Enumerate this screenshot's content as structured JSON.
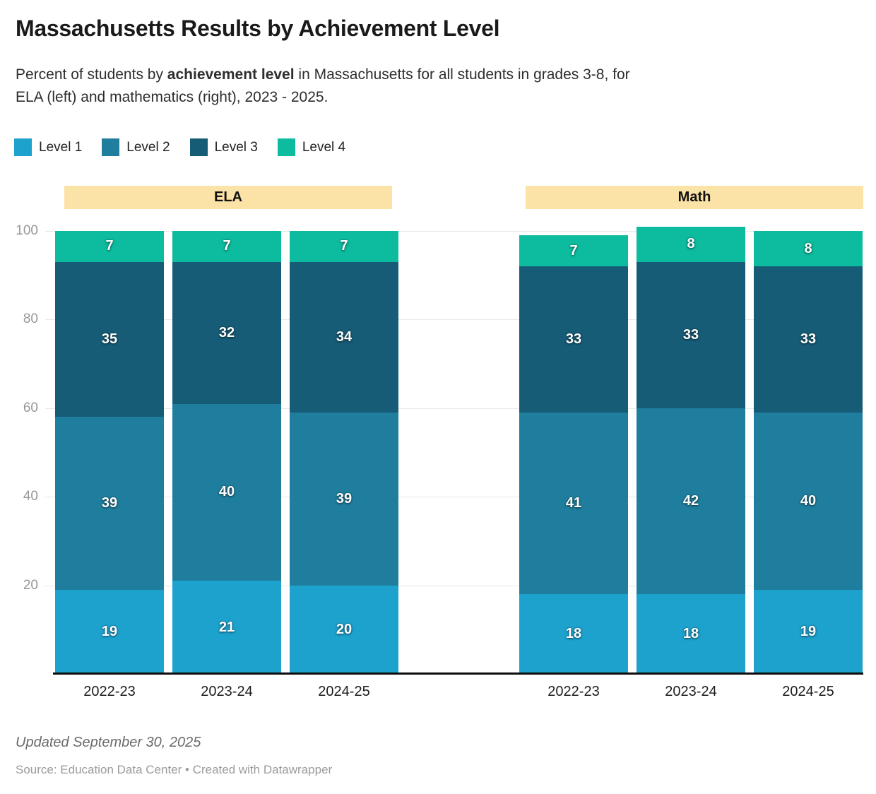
{
  "header": {
    "title": "Massachusetts Results by Achievement Level",
    "subtitle": {
      "line1_prefix": "Percent of students by ",
      "line1_bold": "achievement level",
      "line1_suffix": " in Massachusetts for all students in grades 3-8, for",
      "line2": "ELA (left) and mathematics (right), 2023 - 2025."
    }
  },
  "legend": {
    "items": [
      {
        "label": "Level 1",
        "color": "#1DA1CD"
      },
      {
        "label": "Level 2",
        "color": "#1F7E9D"
      },
      {
        "label": "Level 3",
        "color": "#165C77"
      },
      {
        "label": "Level 4",
        "color": "#0DBB9E"
      }
    ]
  },
  "chart_data": {
    "type": "bar",
    "stacked": true,
    "unit": "percent of students",
    "ylim": [
      0,
      100
    ],
    "yticks": [
      20,
      40,
      60,
      80,
      100
    ],
    "grid": true,
    "legend_position": "top-left",
    "group_header_bg": "#FBE2A6",
    "categories": [
      "2022-23",
      "2023-24",
      "2024-25"
    ],
    "groups": [
      {
        "label": "ELA",
        "series": [
          {
            "name": "Level 1",
            "color": "#1DA1CD",
            "values": [
              19,
              21,
              20
            ]
          },
          {
            "name": "Level 2",
            "color": "#1F7E9D",
            "values": [
              39,
              40,
              39
            ]
          },
          {
            "name": "Level 3",
            "color": "#165C77",
            "values": [
              35,
              32,
              34
            ]
          },
          {
            "name": "Level 4",
            "color": "#0DBB9E",
            "values": [
              7,
              7,
              7
            ]
          }
        ]
      },
      {
        "label": "Math",
        "series": [
          {
            "name": "Level 1",
            "color": "#1DA1CD",
            "values": [
              18,
              18,
              19
            ]
          },
          {
            "name": "Level 2",
            "color": "#1F7E9D",
            "values": [
              41,
              42,
              40
            ]
          },
          {
            "name": "Level 3",
            "color": "#165C77",
            "values": [
              33,
              33,
              33
            ]
          },
          {
            "name": "Level 4",
            "color": "#0DBB9E",
            "values": [
              7,
              8,
              8
            ]
          }
        ]
      }
    ]
  },
  "footer": {
    "updated": "Updated September 30, 2025",
    "source": "Source: Education Data Center • Created with Datawrapper"
  }
}
